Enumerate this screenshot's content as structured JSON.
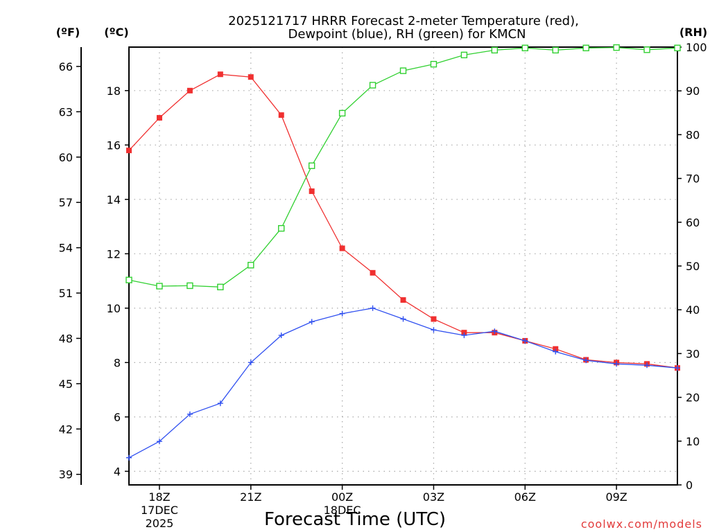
{
  "chart_data": {
    "type": "line",
    "title": "2025121717 HRRR Forecast 2-meter Temperature (red),",
    "subtitle": "Dewpoint (blue), RH (green) for KMCN",
    "xlabel": "Forecast Time (UTC)",
    "credit": "coolwx.com/models",
    "units": {
      "fahrenheit": "(ºF)",
      "celsius": "(ºC)",
      "rh": "(RH)"
    },
    "x_hours": [
      0,
      1,
      2,
      3,
      4,
      5,
      6,
      7,
      8,
      9,
      10,
      11,
      12,
      13,
      14,
      15,
      16,
      17,
      18
    ],
    "xlim": [
      0,
      18
    ],
    "x_ticks": [
      {
        "x": 1,
        "lines": [
          "18Z",
          "17DEC",
          "2025"
        ]
      },
      {
        "x": 4,
        "lines": [
          "21Z"
        ]
      },
      {
        "x": 7,
        "lines": [
          "00Z",
          "18DEC"
        ]
      },
      {
        "x": 10,
        "lines": [
          "03Z"
        ]
      },
      {
        "x": 13,
        "lines": [
          "06Z"
        ]
      },
      {
        "x": 16,
        "lines": [
          "09Z"
        ]
      }
    ],
    "celsius_axis": {
      "ylim": [
        3.5,
        19.6
      ],
      "ticks": [
        4,
        6,
        8,
        10,
        12,
        14,
        16,
        18
      ]
    },
    "fahrenheit_axis": {
      "ticks": [
        39,
        42,
        45,
        48,
        51,
        54,
        57,
        60,
        63,
        66
      ]
    },
    "rh_axis": {
      "ylim": [
        0,
        100
      ],
      "ticks": [
        0,
        10,
        20,
        30,
        40,
        50,
        60,
        70,
        80,
        90,
        100
      ]
    },
    "series": [
      {
        "name": "Temperature",
        "axis": "celsius",
        "color": "#f03030",
        "marker": "filled-square",
        "values": [
          15.8,
          17.0,
          18.0,
          18.6,
          18.5,
          17.1,
          14.3,
          12.2,
          11.3,
          10.3,
          9.6,
          9.1,
          9.1,
          8.8,
          8.5,
          8.1,
          8.0,
          7.95,
          7.8
        ]
      },
      {
        "name": "Dewpoint",
        "axis": "celsius",
        "color": "#3050f0",
        "marker": "plus",
        "values": [
          4.5,
          5.1,
          6.1,
          6.5,
          8.0,
          9.0,
          9.5,
          9.8,
          10.0,
          9.6,
          9.2,
          9.0,
          9.15,
          8.8,
          8.4,
          8.08,
          7.95,
          7.9,
          7.8
        ]
      },
      {
        "name": "RH",
        "axis": "rh",
        "color": "#30d030",
        "marker": "open-square",
        "values": [
          46.8,
          45.4,
          45.5,
          45.2,
          50.2,
          58.6,
          72.9,
          84.9,
          91.3,
          94.6,
          96.1,
          98.2,
          99.3,
          99.8,
          99.3,
          99.8,
          99.9,
          99.4,
          99.8
        ]
      }
    ]
  }
}
